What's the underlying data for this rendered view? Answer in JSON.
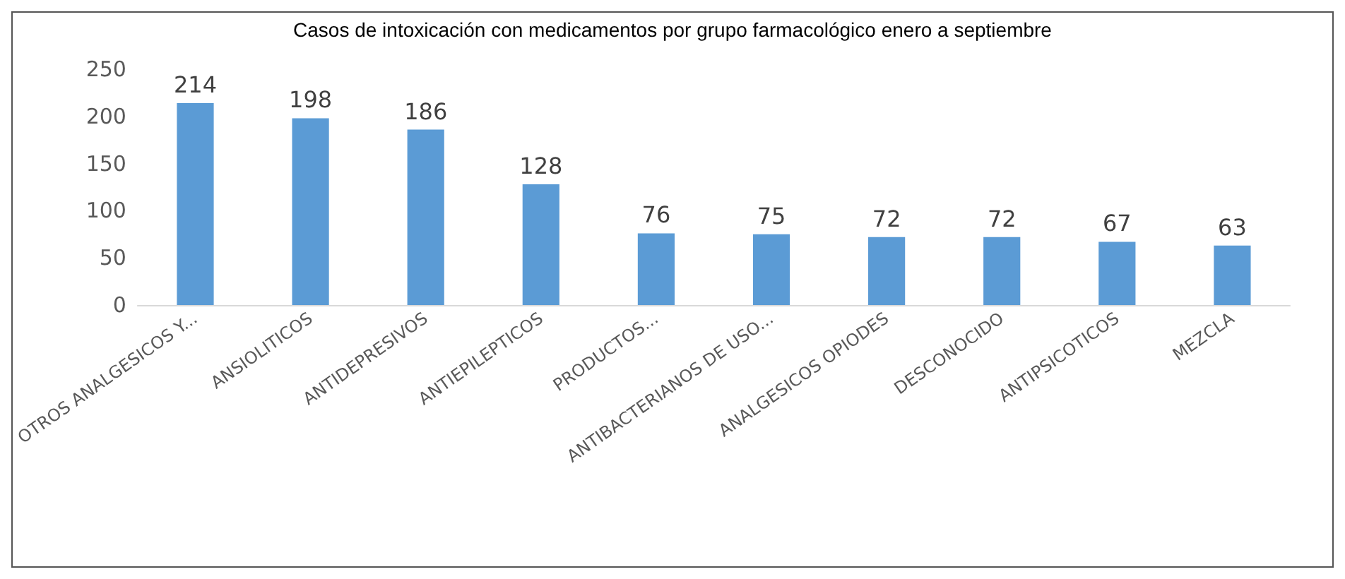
{
  "chart_data": {
    "type": "bar",
    "title": "Casos de intoxicación con medicamentos por grupo farmacológico enero a septiembre",
    "categories": [
      "OTROS ANALGESICOS Y...",
      "ANSIOLITICOS",
      "ANTIDEPRESIVOS",
      "ANTIEPILEPTICOS",
      "PRODUCTOS...",
      "ANTIBACTERIANOS DE USO...",
      "ANALGESICOS OPIODES",
      "DESCONOCIDO",
      "ANTIPSICOTICOS",
      "MEZCLA"
    ],
    "values": [
      214,
      198,
      186,
      128,
      76,
      75,
      72,
      72,
      67,
      63
    ],
    "color": "#5b9bd5",
    "ylim": [
      0,
      250
    ],
    "yticks": [
      0,
      50,
      100,
      150,
      200,
      250
    ],
    "grid": false,
    "data_labels": true
  }
}
